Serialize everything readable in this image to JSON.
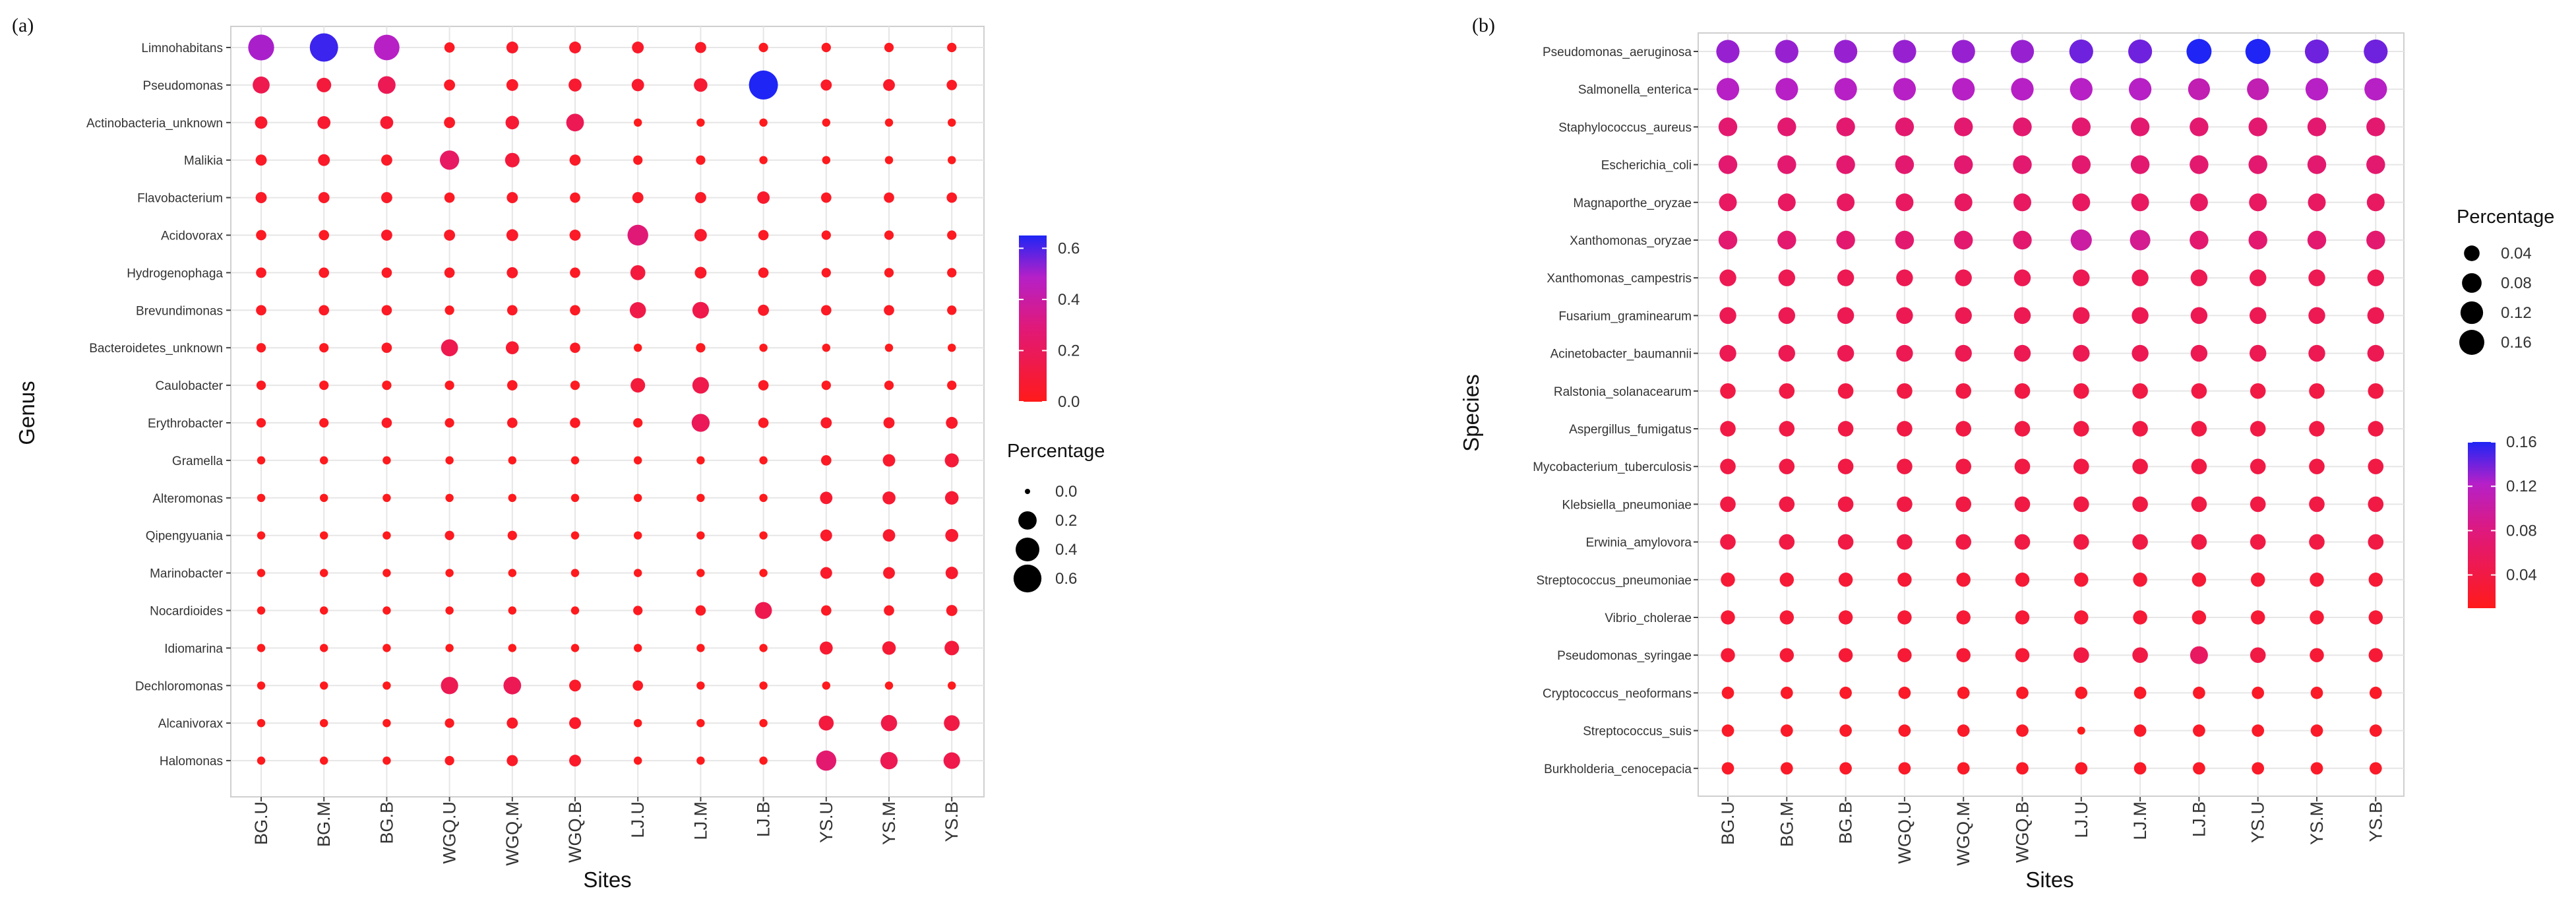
{
  "chart_data": [
    {
      "type": "scatter",
      "panel_label": "(a)",
      "xlabel": "Sites",
      "ylabel": "Genus",
      "x_categories": [
        "BG.U",
        "BG.M",
        "BG.B",
        "WGQ.U",
        "WGQ.M",
        "WGQ.B",
        "LJ.U",
        "LJ.M",
        "LJ.B",
        "YS.U",
        "YS.M",
        "YS.B"
      ],
      "y_categories": [
        "Limnohabitans",
        "Pseudomonas",
        "Actinobacteria_unknown",
        "Malikia",
        "Flavobacterium",
        "Acidovorax",
        "Hydrogenophaga",
        "Brevundimonas",
        "Bacteroidetes_unknown",
        "Caulobacter",
        "Erythrobacter",
        "Gramella",
        "Alteromonas",
        "Qipengyuania",
        "Marinobacter",
        "Nocardioides",
        "Idiomarina",
        "Dechloromonas",
        "Alcanivorax",
        "Halomonas"
      ],
      "values": [
        [
          0.5,
          0.62,
          0.48,
          0.03,
          0.05,
          0.05,
          0.05,
          0.04,
          0.02,
          0.02,
          0.02,
          0.02
        ],
        [
          0.16,
          0.1,
          0.18,
          0.04,
          0.05,
          0.07,
          0.06,
          0.08,
          0.66,
          0.04,
          0.05,
          0.03
        ],
        [
          0.06,
          0.07,
          0.07,
          0.04,
          0.08,
          0.18,
          0.01,
          0.01,
          0.01,
          0.01,
          0.01,
          0.01
        ],
        [
          0.04,
          0.05,
          0.04,
          0.23,
          0.1,
          0.04,
          0.02,
          0.02,
          0.01,
          0.01,
          0.01,
          0.01
        ],
        [
          0.04,
          0.04,
          0.04,
          0.03,
          0.04,
          0.03,
          0.04,
          0.04,
          0.06,
          0.03,
          0.03,
          0.03
        ],
        [
          0.03,
          0.03,
          0.04,
          0.04,
          0.05,
          0.04,
          0.28,
          0.06,
          0.03,
          0.02,
          0.02,
          0.02
        ],
        [
          0.03,
          0.03,
          0.03,
          0.03,
          0.04,
          0.03,
          0.11,
          0.05,
          0.03,
          0.02,
          0.02,
          0.02
        ],
        [
          0.03,
          0.03,
          0.03,
          0.02,
          0.03,
          0.03,
          0.14,
          0.15,
          0.04,
          0.03,
          0.03,
          0.02
        ],
        [
          0.02,
          0.02,
          0.03,
          0.16,
          0.07,
          0.03,
          0.01,
          0.02,
          0.01,
          0.01,
          0.01,
          0.01
        ],
        [
          0.02,
          0.02,
          0.02,
          0.02,
          0.03,
          0.02,
          0.1,
          0.15,
          0.03,
          0.02,
          0.02,
          0.02
        ],
        [
          0.02,
          0.02,
          0.03,
          0.02,
          0.03,
          0.03,
          0.02,
          0.19,
          0.03,
          0.04,
          0.04,
          0.05
        ],
        [
          0.01,
          0.01,
          0.01,
          0.01,
          0.01,
          0.01,
          0.01,
          0.01,
          0.01,
          0.03,
          0.06,
          0.09
        ],
        [
          0.01,
          0.01,
          0.01,
          0.01,
          0.01,
          0.01,
          0.01,
          0.01,
          0.01,
          0.06,
          0.07,
          0.08
        ],
        [
          0.01,
          0.01,
          0.01,
          0.02,
          0.02,
          0.01,
          0.01,
          0.01,
          0.01,
          0.05,
          0.06,
          0.07
        ],
        [
          0.01,
          0.01,
          0.01,
          0.01,
          0.01,
          0.01,
          0.01,
          0.01,
          0.01,
          0.05,
          0.05,
          0.06
        ],
        [
          0.01,
          0.01,
          0.01,
          0.01,
          0.01,
          0.01,
          0.02,
          0.03,
          0.16,
          0.03,
          0.03,
          0.04
        ],
        [
          0.01,
          0.01,
          0.01,
          0.01,
          0.01,
          0.01,
          0.01,
          0.01,
          0.01,
          0.07,
          0.08,
          0.1
        ],
        [
          0.01,
          0.01,
          0.01,
          0.17,
          0.18,
          0.05,
          0.03,
          0.01,
          0.01,
          0.01,
          0.01,
          0.01
        ],
        [
          0.01,
          0.01,
          0.01,
          0.02,
          0.04,
          0.05,
          0.01,
          0.01,
          0.01,
          0.11,
          0.14,
          0.13
        ],
        [
          0.01,
          0.01,
          0.01,
          0.02,
          0.04,
          0.05,
          0.01,
          0.01,
          0.01,
          0.26,
          0.17,
          0.15
        ]
      ],
      "size_legend": {
        "title": "Percentage",
        "breaks": [
          0.0,
          0.2,
          0.4,
          0.6
        ],
        "labels": [
          "0.0",
          "0.2",
          "0.4",
          "0.6"
        ]
      },
      "color_legend": {
        "range": [
          0,
          0.65
        ],
        "breaks": [
          0.0,
          0.2,
          0.4,
          0.6
        ],
        "labels": [
          "0.0",
          "0.2",
          "0.4",
          "0.6"
        ],
        "low_color": "#ff1a1a",
        "mid_color": "#d81b8f",
        "high_color": "#1f25f5"
      }
    },
    {
      "type": "scatter",
      "panel_label": "(b)",
      "xlabel": "Sites",
      "ylabel": "Species",
      "x_categories": [
        "BG.U",
        "BG.M",
        "BG.B",
        "WGQ.U",
        "WGQ.M",
        "WGQ.B",
        "LJ.U",
        "LJ.M",
        "LJ.B",
        "YS.U",
        "YS.M",
        "YS.B"
      ],
      "y_categories": [
        "Pseudomonas_aeruginosa",
        "Salmonella_enterica",
        "Staphylococcus_aureus",
        "Escherichia_coli",
        "Magnaporthe_oryzae",
        "Xanthomonas_oryzae",
        "Xanthomonas_campestris",
        "Fusarium_graminearum",
        "Acinetobacter_baumannii",
        "Ralstonia_solanacearum",
        "Aspergillus_fumigatus",
        "Mycobacterium_tuberculosis",
        "Klebsiella_pneumoniae",
        "Erwinia_amylovora",
        "Streptococcus_pneumoniae",
        "Vibrio_cholerae",
        "Pseudomonas_syringae",
        "Cryptococcus_neoformans",
        "Streptococcus_suis",
        "Burkholderia_cenocepacia"
      ],
      "values": [
        [
          0.13,
          0.13,
          0.13,
          0.13,
          0.13,
          0.13,
          0.14,
          0.14,
          0.16,
          0.16,
          0.14,
          0.14
        ],
        [
          0.12,
          0.12,
          0.12,
          0.12,
          0.12,
          0.12,
          0.12,
          0.12,
          0.11,
          0.11,
          0.12,
          0.12
        ],
        [
          0.07,
          0.07,
          0.07,
          0.07,
          0.07,
          0.07,
          0.07,
          0.07,
          0.07,
          0.07,
          0.07,
          0.07
        ],
        [
          0.07,
          0.07,
          0.07,
          0.07,
          0.07,
          0.07,
          0.07,
          0.07,
          0.07,
          0.07,
          0.07,
          0.07
        ],
        [
          0.06,
          0.06,
          0.06,
          0.06,
          0.06,
          0.06,
          0.06,
          0.06,
          0.06,
          0.06,
          0.06,
          0.06
        ],
        [
          0.07,
          0.07,
          0.07,
          0.07,
          0.07,
          0.07,
          0.1,
          0.09,
          0.07,
          0.07,
          0.07,
          0.07
        ],
        [
          0.05,
          0.05,
          0.05,
          0.05,
          0.05,
          0.05,
          0.05,
          0.05,
          0.05,
          0.05,
          0.05,
          0.05
        ],
        [
          0.05,
          0.05,
          0.05,
          0.05,
          0.05,
          0.05,
          0.05,
          0.05,
          0.05,
          0.05,
          0.05,
          0.05
        ],
        [
          0.05,
          0.05,
          0.05,
          0.05,
          0.05,
          0.05,
          0.05,
          0.05,
          0.05,
          0.05,
          0.05,
          0.05
        ],
        [
          0.04,
          0.04,
          0.04,
          0.04,
          0.04,
          0.04,
          0.04,
          0.04,
          0.04,
          0.04,
          0.04,
          0.04
        ],
        [
          0.04,
          0.04,
          0.04,
          0.04,
          0.04,
          0.04,
          0.04,
          0.04,
          0.04,
          0.04,
          0.04,
          0.04
        ],
        [
          0.04,
          0.04,
          0.04,
          0.04,
          0.04,
          0.04,
          0.04,
          0.04,
          0.04,
          0.04,
          0.04,
          0.04
        ],
        [
          0.04,
          0.04,
          0.04,
          0.04,
          0.04,
          0.04,
          0.04,
          0.04,
          0.04,
          0.04,
          0.04,
          0.04
        ],
        [
          0.04,
          0.04,
          0.04,
          0.04,
          0.04,
          0.04,
          0.04,
          0.04,
          0.04,
          0.04,
          0.04,
          0.04
        ],
        [
          0.03,
          0.03,
          0.03,
          0.03,
          0.03,
          0.03,
          0.03,
          0.03,
          0.03,
          0.03,
          0.03,
          0.03
        ],
        [
          0.03,
          0.03,
          0.03,
          0.03,
          0.03,
          0.03,
          0.03,
          0.03,
          0.03,
          0.03,
          0.03,
          0.03
        ],
        [
          0.03,
          0.03,
          0.03,
          0.03,
          0.03,
          0.03,
          0.04,
          0.04,
          0.06,
          0.04,
          0.03,
          0.03
        ],
        [
          0.02,
          0.02,
          0.02,
          0.02,
          0.02,
          0.02,
          0.02,
          0.02,
          0.02,
          0.02,
          0.02,
          0.02
        ],
        [
          0.02,
          0.02,
          0.02,
          0.02,
          0.02,
          0.02,
          0.01,
          0.02,
          0.02,
          0.02,
          0.02,
          0.02
        ],
        [
          0.02,
          0.02,
          0.02,
          0.02,
          0.02,
          0.02,
          0.02,
          0.02,
          0.02,
          0.02,
          0.02,
          0.02
        ]
      ],
      "size_legend": {
        "title": "Percentage",
        "breaks": [
          0.04,
          0.08,
          0.12,
          0.16
        ],
        "labels": [
          "0.04",
          "0.08",
          "0.12",
          "0.16"
        ]
      },
      "color_legend": {
        "range": [
          0.01,
          0.16
        ],
        "breaks": [
          0.04,
          0.08,
          0.12,
          0.16
        ],
        "labels": [
          "0.04",
          "0.08",
          "0.12",
          "0.16"
        ],
        "low_color": "#ff1a1a",
        "mid_color": "#d81b8f",
        "high_color": "#1f25f5"
      }
    }
  ]
}
